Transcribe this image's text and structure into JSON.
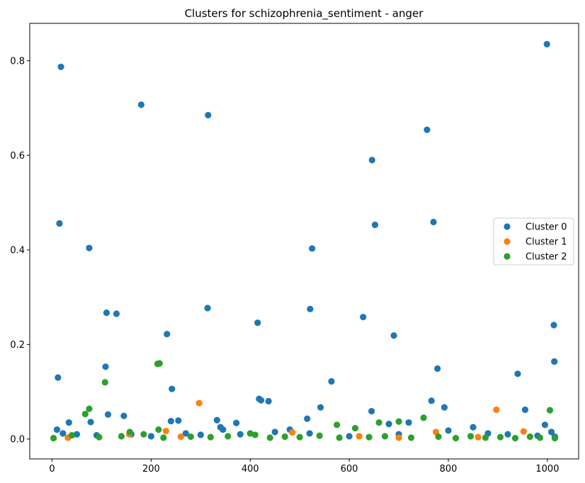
{
  "chart_data": {
    "type": "scatter",
    "title": "Clusters for schizophrenia_sentiment - anger",
    "xlabel": "",
    "ylabel": "",
    "xlim": [
      -45,
      1063
    ],
    "ylim": [
      -0.042,
      0.879
    ],
    "xticks": [
      0,
      200,
      400,
      600,
      800,
      1000
    ],
    "yticks": [
      0.0,
      0.2,
      0.4,
      0.6,
      0.8
    ],
    "ytick_labels": [
      "0.0",
      "0.2",
      "0.4",
      "0.6",
      "0.8"
    ],
    "grid": false,
    "legend_position": "center-right",
    "series": [
      {
        "name": "Cluster 0",
        "color": "#1f77b4",
        "points": [
          [
            18,
            0.787
          ],
          [
            15,
            0.456
          ],
          [
            75,
            0.404
          ],
          [
            110,
            0.267
          ],
          [
            130,
            0.265
          ],
          [
            12,
            0.13
          ],
          [
            108,
            0.153
          ],
          [
            113,
            0.052
          ],
          [
            34,
            0.035
          ],
          [
            78,
            0.036
          ],
          [
            145,
            0.049
          ],
          [
            180,
            0.707
          ],
          [
            315,
            0.685
          ],
          [
            232,
            0.222
          ],
          [
            242,
            0.106
          ],
          [
            240,
            0.038
          ],
          [
            255,
            0.039
          ],
          [
            314,
            0.277
          ],
          [
            415,
            0.246
          ],
          [
            418,
            0.085
          ],
          [
            422,
            0.082
          ],
          [
            437,
            0.08
          ],
          [
            333,
            0.04
          ],
          [
            340,
            0.025
          ],
          [
            345,
            0.02
          ],
          [
            372,
            0.034
          ],
          [
            525,
            0.403
          ],
          [
            521,
            0.275
          ],
          [
            515,
            0.043
          ],
          [
            542,
            0.067
          ],
          [
            564,
            0.122
          ],
          [
            628,
            0.258
          ],
          [
            645,
            0.059
          ],
          [
            646,
            0.59
          ],
          [
            652,
            0.453
          ],
          [
            690,
            0.219
          ],
          [
            757,
            0.654
          ],
          [
            770,
            0.459
          ],
          [
            778,
            0.149
          ],
          [
            766,
            0.081
          ],
          [
            792,
            0.067
          ],
          [
            940,
            0.138
          ],
          [
            955,
            0.062
          ],
          [
            999,
            0.835
          ],
          [
            1013,
            0.241
          ],
          [
            1014,
            0.164
          ],
          [
            995,
            0.03
          ],
          [
            720,
            0.035
          ],
          [
            680,
            0.032
          ],
          [
            850,
            0.025
          ],
          [
            10,
            0.02
          ],
          [
            22,
            0.012
          ],
          [
            50,
            0.01
          ],
          [
            90,
            0.008
          ],
          [
            160,
            0.01
          ],
          [
            200,
            0.006
          ],
          [
            270,
            0.012
          ],
          [
            300,
            0.009
          ],
          [
            380,
            0.01
          ],
          [
            450,
            0.015
          ],
          [
            480,
            0.02
          ],
          [
            520,
            0.012
          ],
          [
            600,
            0.006
          ],
          [
            700,
            0.01
          ],
          [
            800,
            0.018
          ],
          [
            880,
            0.012
          ],
          [
            920,
            0.01
          ],
          [
            980,
            0.007
          ],
          [
            1008,
            0.015
          ],
          [
            1015,
            0.005
          ]
        ]
      },
      {
        "name": "Cluster 1",
        "color": "#ff7f0e",
        "points": [
          [
            297,
            0.076
          ],
          [
            897,
            0.062
          ],
          [
            775,
            0.015
          ],
          [
            230,
            0.017
          ],
          [
            485,
            0.014
          ],
          [
            952,
            0.016
          ],
          [
            156,
            0.01
          ],
          [
            32,
            0.003
          ],
          [
            260,
            0.005
          ],
          [
            620,
            0.006
          ],
          [
            860,
            0.004
          ],
          [
            700,
            0.003
          ]
        ]
      },
      {
        "name": "Cluster 2",
        "color": "#2ca02c",
        "points": [
          [
            107,
            0.12
          ],
          [
            75,
            0.064
          ],
          [
            67,
            0.053
          ],
          [
            213,
            0.159
          ],
          [
            217,
            0.16
          ],
          [
            575,
            0.03
          ],
          [
            612,
            0.023
          ],
          [
            660,
            0.035
          ],
          [
            700,
            0.037
          ],
          [
            750,
            0.045
          ],
          [
            1005,
            0.061
          ],
          [
            215,
            0.02
          ],
          [
            400,
            0.012
          ],
          [
            157,
            0.015
          ],
          [
            3,
            0.002
          ],
          [
            40,
            0.008
          ],
          [
            95,
            0.004
          ],
          [
            140,
            0.006
          ],
          [
            185,
            0.01
          ],
          [
            225,
            0.003
          ],
          [
            280,
            0.005
          ],
          [
            320,
            0.004
          ],
          [
            355,
            0.006
          ],
          [
            410,
            0.009
          ],
          [
            440,
            0.003
          ],
          [
            470,
            0.005
          ],
          [
            500,
            0.004
          ],
          [
            540,
            0.007
          ],
          [
            580,
            0.003
          ],
          [
            640,
            0.004
          ],
          [
            672,
            0.006
          ],
          [
            725,
            0.003
          ],
          [
            780,
            0.005
          ],
          [
            815,
            0.002
          ],
          [
            845,
            0.006
          ],
          [
            875,
            0.003
          ],
          [
            905,
            0.004
          ],
          [
            935,
            0.002
          ],
          [
            965,
            0.005
          ],
          [
            985,
            0.003
          ],
          [
            1015,
            0.002
          ]
        ]
      }
    ]
  }
}
